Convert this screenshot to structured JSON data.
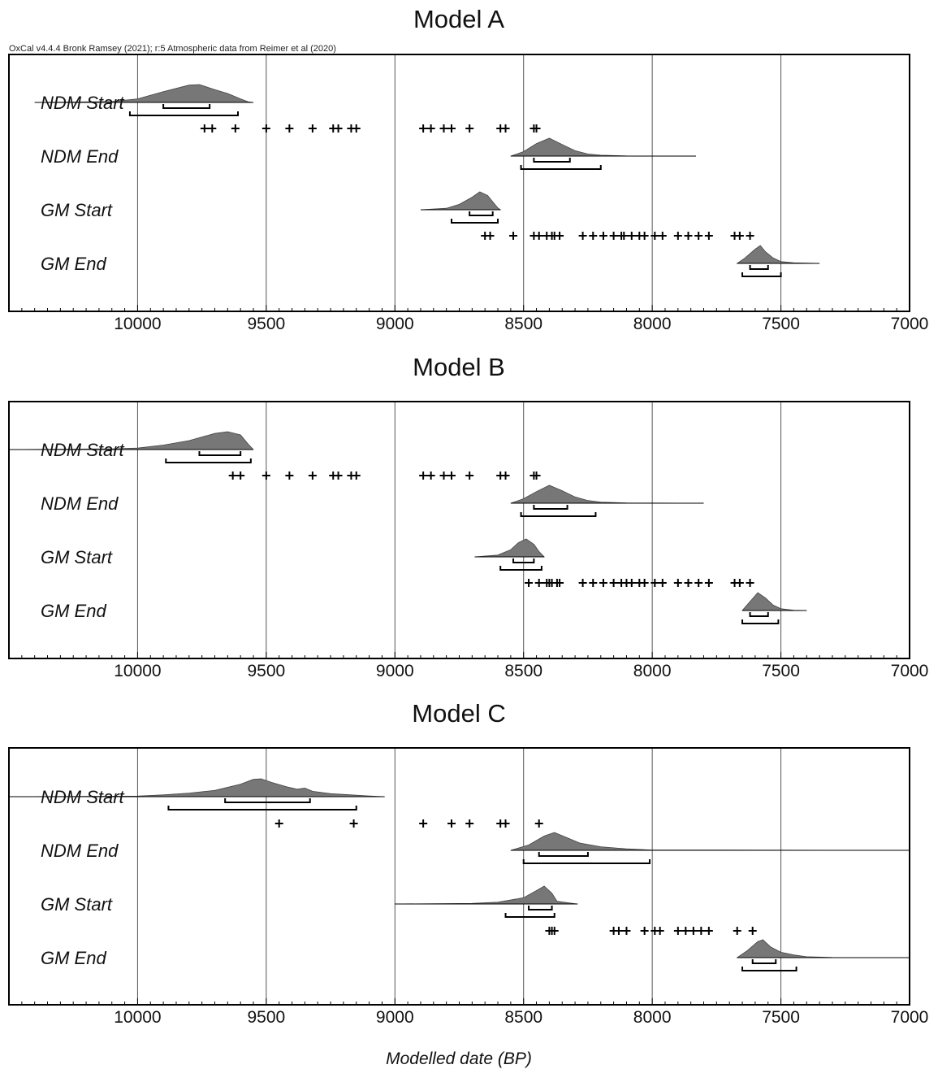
{
  "credit": "OxCal v4.4.4 Bronk Ramsey (2021); r:5 Atmospheric data from Reimer et al (2020)",
  "xlabel": "Modelled date (BP)",
  "colors": {
    "fill": "#777777",
    "line": "#000000",
    "grid": "#555555"
  },
  "chart_data": [
    {
      "type": "area",
      "title": "Model A",
      "xlim": [
        10500,
        7000
      ],
      "xticks": [
        10000,
        9500,
        9000,
        8500,
        8000,
        7500,
        7000
      ],
      "rows": [
        {
          "label": "NDM Start",
          "dist": [
            [
              10400,
              0
            ],
            [
              10100,
              0.05
            ],
            [
              10000,
              0.2
            ],
            [
              9900,
              0.6
            ],
            [
              9800,
              0.97
            ],
            [
              9760,
              1
            ],
            [
              9700,
              0.72
            ],
            [
              9650,
              0.5
            ],
            [
              9600,
              0.2
            ],
            [
              9570,
              0.03
            ],
            [
              9550,
              0
            ]
          ],
          "hpd68": [
            9900,
            9720
          ],
          "hpd95": [
            10030,
            9610
          ],
          "markers": [
            9740,
            9710,
            9620,
            9500,
            9410,
            9320,
            9240,
            9220,
            9170,
            9150,
            8890,
            8860,
            8810,
            8780,
            8710,
            8590,
            8570,
            8460,
            8450
          ]
        },
        {
          "label": "NDM End",
          "dist": [
            [
              8550,
              0
            ],
            [
              8500,
              0.25
            ],
            [
              8450,
              0.7
            ],
            [
              8400,
              1
            ],
            [
              8350,
              0.65
            ],
            [
              8300,
              0.3
            ],
            [
              8250,
              0.12
            ],
            [
              8200,
              0.05
            ],
            [
              8100,
              0.01
            ],
            [
              7830,
              0
            ]
          ],
          "hpd68": [
            8460,
            8320
          ],
          "hpd95": [
            8510,
            8200
          ],
          "markers": []
        },
        {
          "label": "GM Start",
          "dist": [
            [
              8900,
              0
            ],
            [
              8800,
              0.08
            ],
            [
              8750,
              0.3
            ],
            [
              8700,
              0.7
            ],
            [
              8670,
              1
            ],
            [
              8640,
              0.8
            ],
            [
              8620,
              0.45
            ],
            [
              8600,
              0.1
            ],
            [
              8590,
              0
            ]
          ],
          "hpd68": [
            8710,
            8620
          ],
          "hpd95": [
            8780,
            8600
          ],
          "markers": [
            8650,
            8630,
            8540,
            8460,
            8440,
            8410,
            8390,
            8380,
            8360,
            8270,
            8230,
            8190,
            8150,
            8120,
            8110,
            8080,
            8050,
            8030,
            7990,
            7960,
            7900,
            7860,
            7820,
            7780,
            7680,
            7660,
            7620
          ]
        },
        {
          "label": "GM End",
          "dist": [
            [
              7670,
              0
            ],
            [
              7640,
              0.3
            ],
            [
              7600,
              0.8
            ],
            [
              7580,
              1
            ],
            [
              7560,
              0.65
            ],
            [
              7530,
              0.3
            ],
            [
              7500,
              0.1
            ],
            [
              7450,
              0.03
            ],
            [
              7350,
              0
            ]
          ],
          "hpd68": [
            7620,
            7550
          ],
          "hpd95": [
            7650,
            7500
          ],
          "markers": []
        }
      ]
    },
    {
      "type": "area",
      "title": "Model B",
      "xlim": [
        10500,
        7000
      ],
      "xticks": [
        10000,
        9500,
        9000,
        8500,
        8000,
        7500,
        7000
      ],
      "rows": [
        {
          "label": "NDM Start",
          "dist": [
            [
              10500,
              0
            ],
            [
              10100,
              0.04
            ],
            [
              10000,
              0.08
            ],
            [
              9900,
              0.25
            ],
            [
              9800,
              0.5
            ],
            [
              9700,
              0.9
            ],
            [
              9650,
              1
            ],
            [
              9600,
              0.82
            ],
            [
              9570,
              0.3
            ],
            [
              9550,
              0
            ]
          ],
          "hpd68": [
            9760,
            9600
          ],
          "hpd95": [
            9890,
            9560
          ],
          "markers": [
            9630,
            9600,
            9500,
            9410,
            9320,
            9240,
            9220,
            9170,
            9150,
            8890,
            8860,
            8810,
            8780,
            8710,
            8590,
            8570,
            8460,
            8450
          ]
        },
        {
          "label": "NDM End",
          "dist": [
            [
              8550,
              0
            ],
            [
              8500,
              0.25
            ],
            [
              8450,
              0.65
            ],
            [
              8400,
              1
            ],
            [
              8350,
              0.7
            ],
            [
              8300,
              0.35
            ],
            [
              8250,
              0.15
            ],
            [
              8200,
              0.06
            ],
            [
              8100,
              0.015
            ],
            [
              7800,
              0
            ]
          ],
          "hpd68": [
            8460,
            8330
          ],
          "hpd95": [
            8510,
            8220
          ],
          "markers": []
        },
        {
          "label": "GM Start",
          "dist": [
            [
              8690,
              0
            ],
            [
              8600,
              0.1
            ],
            [
              8550,
              0.4
            ],
            [
              8520,
              0.8
            ],
            [
              8490,
              1
            ],
            [
              8460,
              0.7
            ],
            [
              8440,
              0.3
            ],
            [
              8420,
              0
            ]
          ],
          "hpd68": [
            8540,
            8460
          ],
          "hpd95": [
            8590,
            8430
          ],
          "markers": [
            8480,
            8440,
            8410,
            8400,
            8390,
            8370,
            8360,
            8270,
            8230,
            8190,
            8150,
            8120,
            8100,
            8080,
            8050,
            8030,
            7990,
            7960,
            7900,
            7860,
            7820,
            7780,
            7680,
            7660,
            7620
          ]
        },
        {
          "label": "GM End",
          "dist": [
            [
              7650,
              0
            ],
            [
              7620,
              0.5
            ],
            [
              7590,
              1
            ],
            [
              7560,
              0.7
            ],
            [
              7530,
              0.3
            ],
            [
              7500,
              0.1
            ],
            [
              7450,
              0.02
            ],
            [
              7400,
              0
            ]
          ],
          "hpd68": [
            7620,
            7550
          ],
          "hpd95": [
            7650,
            7510
          ],
          "markers": []
        }
      ]
    },
    {
      "type": "area",
      "title": "Model C",
      "xlim": [
        10500,
        7000
      ],
      "xticks": [
        10000,
        9500,
        9000,
        8500,
        8000,
        7500,
        7000
      ],
      "rows": [
        {
          "label": "NDM Start",
          "dist": [
            [
              10500,
              0
            ],
            [
              10000,
              0.03
            ],
            [
              9900,
              0.1
            ],
            [
              9800,
              0.2
            ],
            [
              9700,
              0.35
            ],
            [
              9600,
              0.7
            ],
            [
              9550,
              0.97
            ],
            [
              9520,
              1
            ],
            [
              9480,
              0.8
            ],
            [
              9420,
              0.55
            ],
            [
              9380,
              0.42
            ],
            [
              9350,
              0.48
            ],
            [
              9320,
              0.3
            ],
            [
              9250,
              0.17
            ],
            [
              9170,
              0.1
            ],
            [
              9100,
              0.04
            ],
            [
              9040,
              0
            ]
          ],
          "hpd68": [
            9660,
            9330
          ],
          "hpd95": [
            9880,
            9150
          ],
          "markers": [
            9450,
            9160,
            8890,
            8780,
            8710,
            8590,
            8570,
            8440
          ]
        },
        {
          "label": "NDM End",
          "dist": [
            [
              8550,
              0
            ],
            [
              8480,
              0.3
            ],
            [
              8420,
              0.8
            ],
            [
              8380,
              1
            ],
            [
              8330,
              0.7
            ],
            [
              8280,
              0.4
            ],
            [
              8200,
              0.2
            ],
            [
              8100,
              0.08
            ],
            [
              8000,
              0.02
            ],
            [
              7000,
              0
            ]
          ],
          "hpd68": [
            8440,
            8250
          ],
          "hpd95": [
            8500,
            8010
          ],
          "markers": []
        },
        {
          "label": "GM Start",
          "dist": [
            [
              9000,
              0
            ],
            [
              8700,
              0.03
            ],
            [
              8600,
              0.1
            ],
            [
              8500,
              0.35
            ],
            [
              8450,
              0.75
            ],
            [
              8420,
              1
            ],
            [
              8390,
              0.6
            ],
            [
              8370,
              0.15
            ],
            [
              8300,
              0.02
            ],
            [
              8290,
              0
            ]
          ],
          "hpd68": [
            8480,
            8390
          ],
          "hpd95": [
            8570,
            8380
          ],
          "markers": [
            8400,
            8390,
            8380,
            8150,
            8130,
            8100,
            8030,
            7990,
            7970,
            7900,
            7870,
            7840,
            7810,
            7780,
            7670,
            7610
          ]
        },
        {
          "label": "GM End",
          "dist": [
            [
              7670,
              0
            ],
            [
              7630,
              0.4
            ],
            [
              7590,
              0.9
            ],
            [
              7570,
              1
            ],
            [
              7540,
              0.6
            ],
            [
              7500,
              0.3
            ],
            [
              7450,
              0.15
            ],
            [
              7400,
              0.05
            ],
            [
              7300,
              0.01
            ],
            [
              7000,
              0
            ]
          ],
          "hpd68": [
            7610,
            7520
          ],
          "hpd95": [
            7650,
            7440
          ],
          "markers": []
        }
      ]
    }
  ]
}
